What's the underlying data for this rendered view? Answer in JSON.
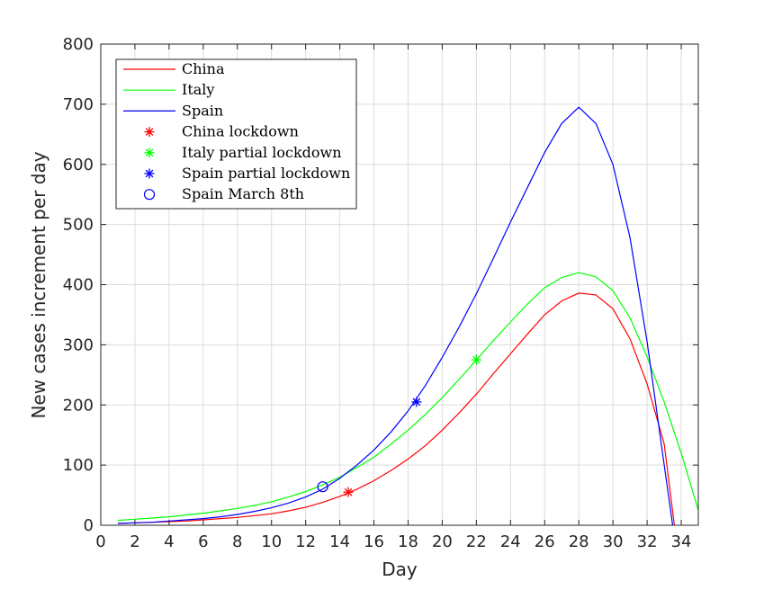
{
  "chart_data": {
    "type": "line",
    "xlabel": "Day",
    "ylabel": "New cases increment per day",
    "xlim": [
      0,
      35
    ],
    "ylim": [
      0,
      800
    ],
    "xticks": [
      0,
      2,
      4,
      6,
      8,
      10,
      12,
      14,
      16,
      18,
      20,
      22,
      24,
      26,
      28,
      30,
      32,
      34
    ],
    "yticks": [
      0,
      100,
      200,
      300,
      400,
      500,
      600,
      700,
      800
    ],
    "grid": true,
    "legend_position": "top-left",
    "series": [
      {
        "name": "China",
        "color": "#ff0000",
        "x": [
          1,
          2,
          3,
          4,
          5,
          6,
          7,
          8,
          9,
          10,
          11,
          12,
          13,
          14,
          15,
          16,
          17,
          18,
          19,
          20,
          21,
          22,
          23,
          24,
          25,
          26,
          27,
          28,
          29,
          30,
          31,
          32,
          33,
          33.6
        ],
        "y": [
          3,
          4,
          5,
          6,
          7,
          9,
          11,
          13,
          16,
          19,
          24,
          30,
          38,
          48,
          60,
          74,
          91,
          110,
          132,
          158,
          187,
          218,
          252,
          285,
          318,
          350,
          373,
          386,
          383,
          360,
          310,
          235,
          135,
          0
        ]
      },
      {
        "name": "Italy",
        "color": "#00ff00",
        "x": [
          1,
          2,
          3,
          4,
          5,
          6,
          7,
          8,
          9,
          10,
          11,
          12,
          13,
          14,
          15,
          16,
          17,
          18,
          19,
          20,
          21,
          22,
          23,
          24,
          25,
          26,
          27,
          28,
          29,
          30,
          31,
          32,
          33,
          34,
          35
        ],
        "y": [
          8,
          10,
          12,
          14,
          17,
          20,
          24,
          28,
          33,
          39,
          47,
          56,
          67,
          80,
          96,
          113,
          135,
          158,
          184,
          212,
          243,
          275,
          307,
          338,
          368,
          395,
          412,
          420,
          413,
          390,
          345,
          280,
          205,
          120,
          25
        ]
      },
      {
        "name": "Spain",
        "color": "#0000ff",
        "x": [
          1,
          2,
          3,
          4,
          5,
          6,
          7,
          8,
          9,
          10,
          11,
          12,
          13,
          14,
          15,
          16,
          17,
          18,
          19,
          20,
          21,
          22,
          23,
          24,
          25,
          26,
          27,
          28,
          29,
          30,
          31,
          32,
          33,
          33.5
        ],
        "y": [
          3,
          4,
          5,
          7,
          9,
          11,
          14,
          18,
          23,
          29,
          37,
          47,
          60,
          78,
          100,
          125,
          155,
          190,
          232,
          279,
          330,
          385,
          444,
          504,
          562,
          620,
          668,
          695,
          668,
          600,
          478,
          305,
          100,
          0
        ]
      }
    ],
    "markers": [
      {
        "name": "China lockdown",
        "symbol": "asterisk",
        "color": "#ff0000",
        "x": 14.5,
        "y": 55
      },
      {
        "name": "Italy partial lockdown",
        "symbol": "asterisk",
        "color": "#00ff00",
        "x": 22,
        "y": 275
      },
      {
        "name": "Spain partial lockdown",
        "symbol": "asterisk",
        "color": "#0000ff",
        "x": 18.5,
        "y": 205
      },
      {
        "name": "Spain March 8th",
        "symbol": "circle",
        "color": "#0000ff",
        "x": 13,
        "y": 64
      }
    ]
  }
}
